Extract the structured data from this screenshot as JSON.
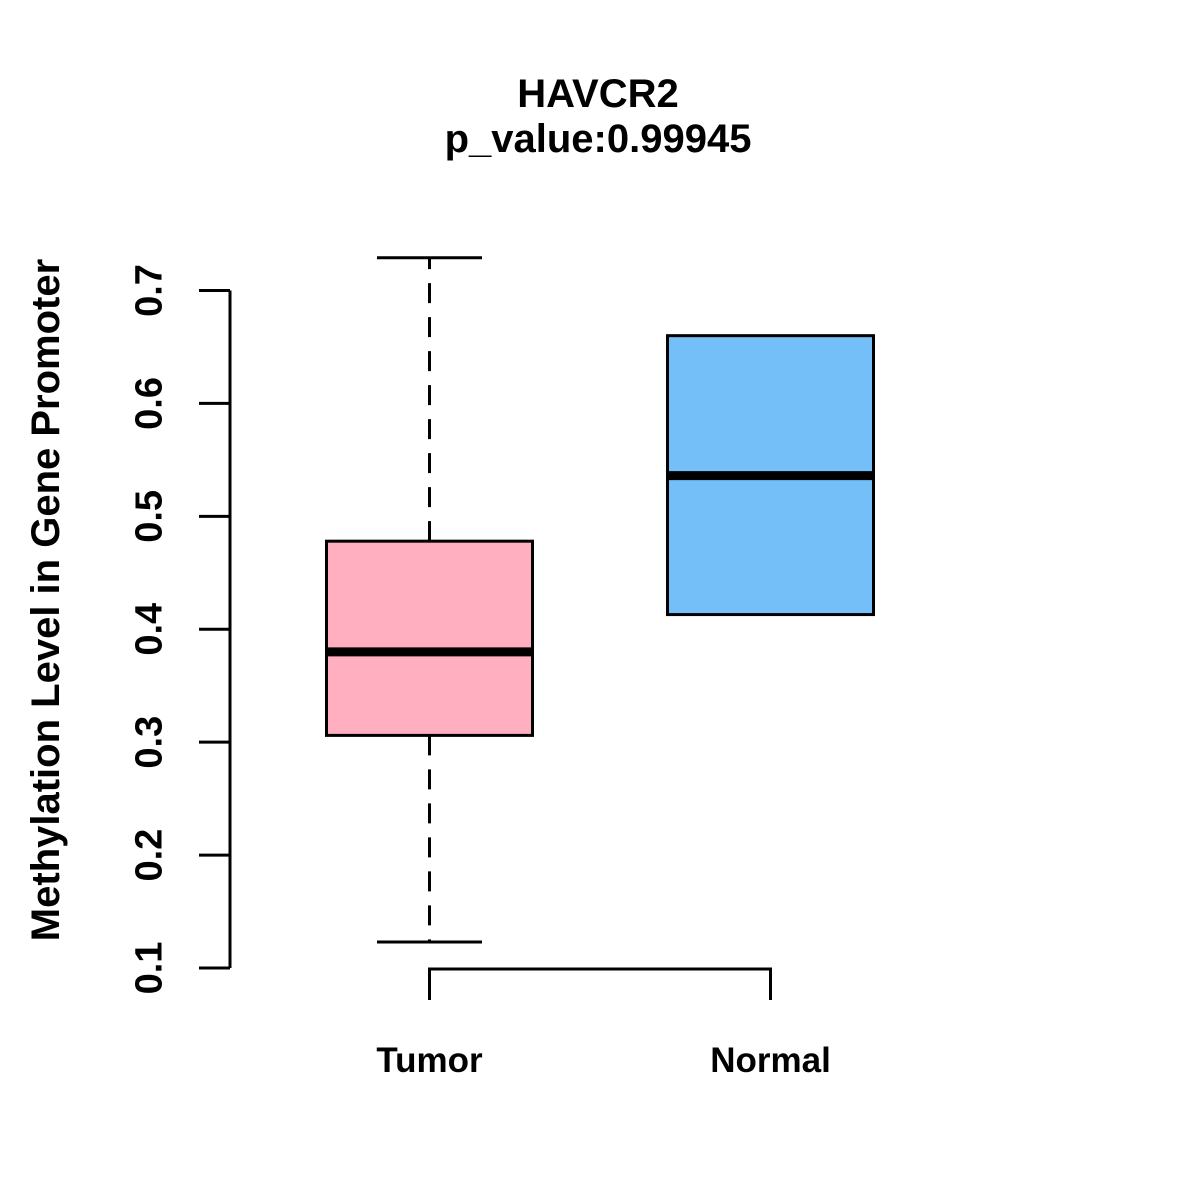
{
  "figure": {
    "title": "HAVCR2",
    "subtitle": "p_value:0.99945",
    "ylabel": "Methylation Level in Gene Promoter"
  },
  "chart_data": {
    "type": "boxplot",
    "title": "HAVCR2",
    "subtitle": "p_value:0.99945",
    "ylabel": "Methylation Level in Gene Promoter",
    "xlabel": "",
    "ylim": [
      0.1,
      0.7
    ],
    "yticks": [
      {
        "label": "0.1",
        "value": 0.1
      },
      {
        "label": "0.2",
        "value": 0.2
      },
      {
        "label": "0.3",
        "value": 0.3
      },
      {
        "label": "0.4",
        "value": 0.4
      },
      {
        "label": "0.5",
        "value": 0.5
      },
      {
        "label": "0.6",
        "value": 0.6
      },
      {
        "label": "0.7",
        "value": 0.7
      }
    ],
    "grid": false,
    "legend": null,
    "categories": [
      "Tumor",
      "Normal"
    ],
    "groups": [
      {
        "label": "Tumor",
        "color": "#FFAFC0",
        "whisker_low": 0.123,
        "q1": 0.306,
        "median": 0.38,
        "q3": 0.478,
        "whisker_high": 0.729
      },
      {
        "label": "Normal",
        "color": "#74BFF8",
        "whisker_low": 0.413,
        "q1": 0.413,
        "median": 0.536,
        "q3": 0.66,
        "whisker_high": 0.66
      }
    ],
    "colors": {
      "box_stroke": "#000000",
      "axis": "#000000",
      "background": "#FFFFFF"
    }
  }
}
